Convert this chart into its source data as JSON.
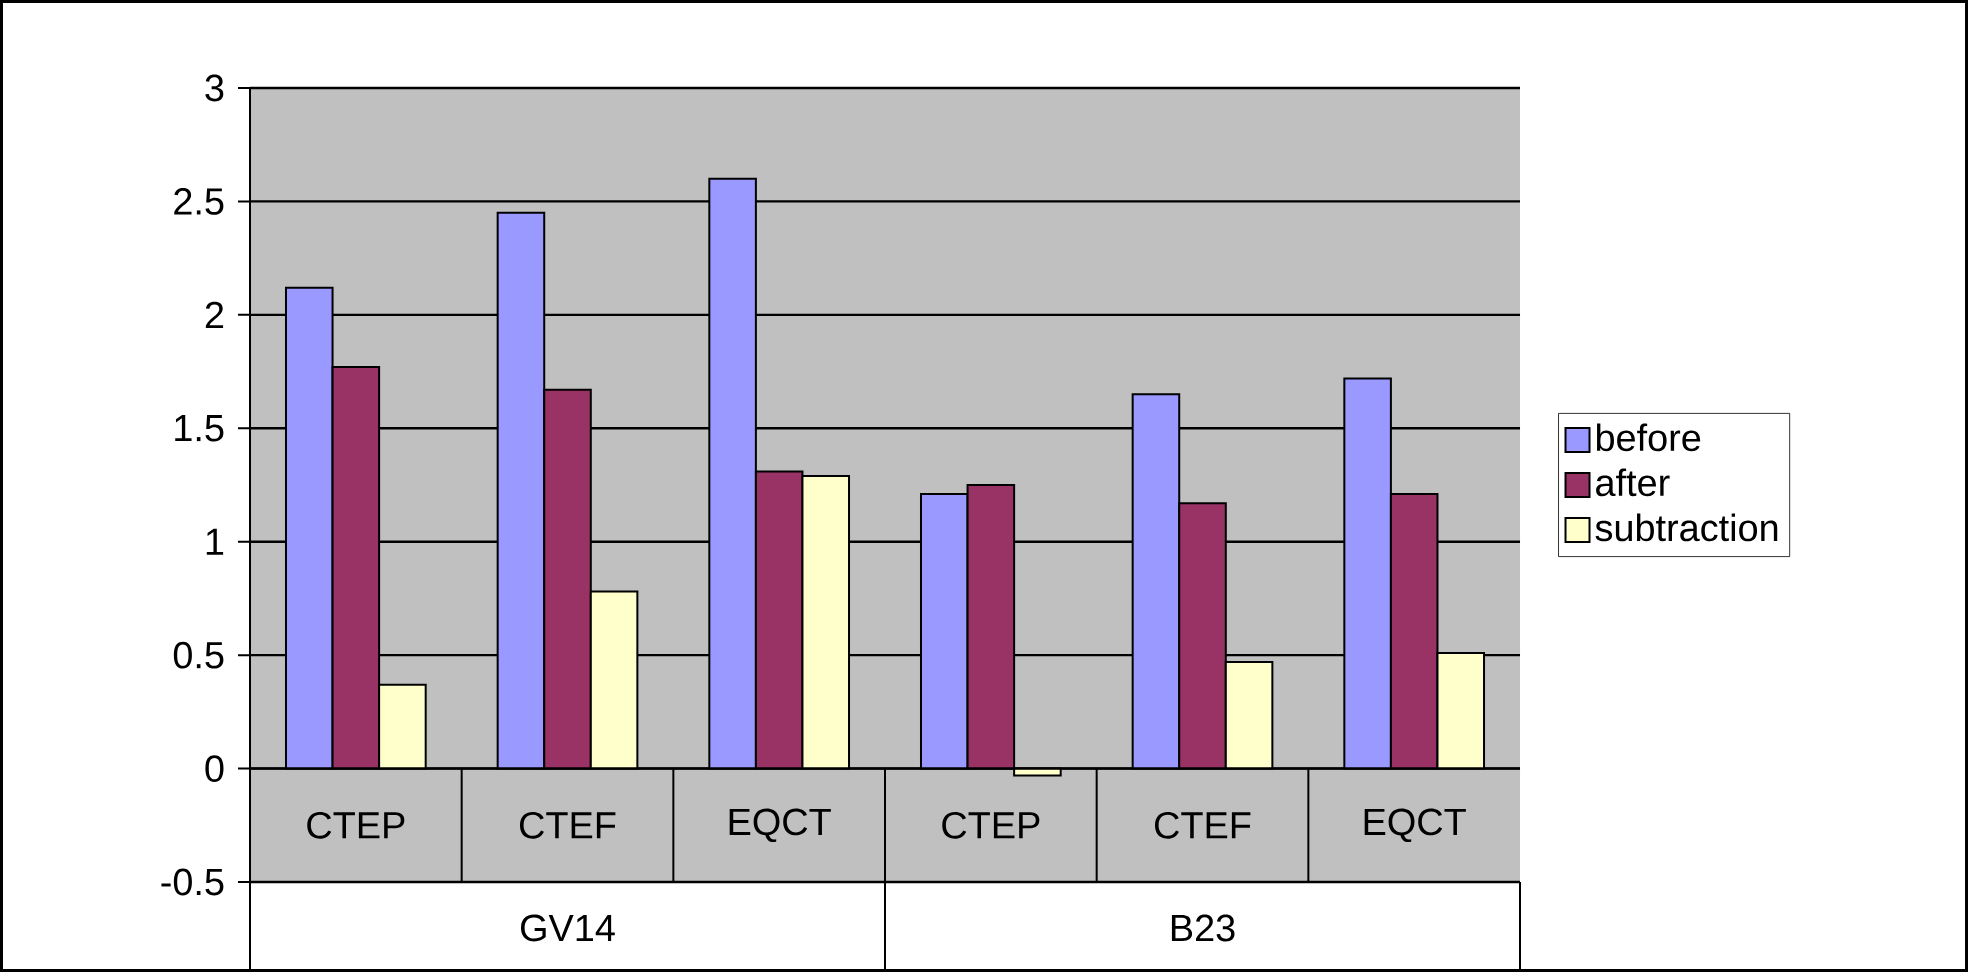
{
  "chart_data": {
    "type": "bar",
    "categories": [
      "CTEP",
      "CTEF",
      "EQCT",
      "CTEP",
      "CTEF",
      "EQCT"
    ],
    "series": [
      {
        "name": "before",
        "color": "#9999ff",
        "values": [
          2.12,
          2.45,
          2.6,
          1.21,
          1.65,
          1.72
        ]
      },
      {
        "name": "after",
        "color": "#993366",
        "values": [
          1.77,
          1.67,
          1.31,
          1.25,
          1.17,
          1.21
        ]
      },
      {
        "name": "subtraction",
        "color": "#ffffcc",
        "values": [
          0.37,
          0.78,
          1.29,
          -0.03,
          0.47,
          0.51
        ]
      }
    ],
    "annotations": [
      "GV14",
      "B23"
    ],
    "ylim": [
      -0.5,
      3
    ],
    "yticks": [
      -0.5,
      0,
      0.5,
      1,
      1.5,
      2,
      2.5,
      3
    ],
    "grid": "y",
    "legend": "right"
  }
}
